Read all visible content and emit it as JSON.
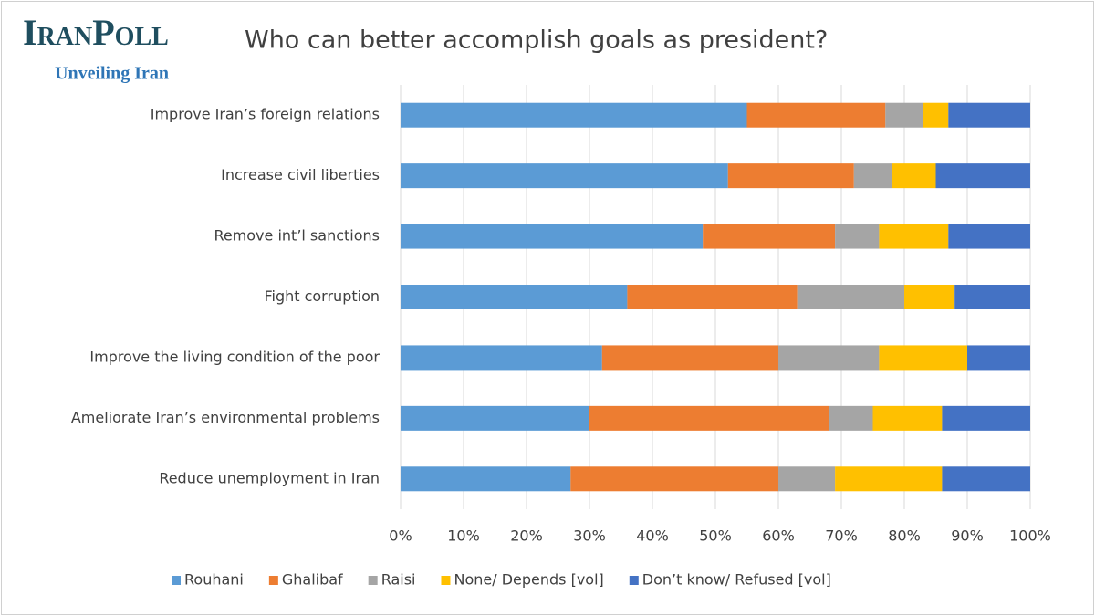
{
  "chart_data": {
    "type": "stacked-barh",
    "logo": "IranPoll",
    "tagline": "Unveiling Iran",
    "title": "Who can better accomplish goals as president?",
    "categories": [
      "Improve Iran’s foreign relations",
      "Increase civil liberties",
      "Remove int’l sanctions",
      "Fight corruption",
      "Improve the living condition of the poor",
      "Ameliorate Iran’s environmental problems",
      "Reduce unemployment in Iran"
    ],
    "series": [
      {
        "name": "Rouhani",
        "color": "#5b9bd5",
        "values": [
          55,
          52,
          48,
          36,
          32,
          30,
          27
        ]
      },
      {
        "name": "Ghalibaf",
        "color": "#ed7d31",
        "values": [
          22,
          20,
          21,
          27,
          28,
          38,
          33
        ]
      },
      {
        "name": "Raisi",
        "color": "#a5a5a5",
        "values": [
          6,
          6,
          7,
          17,
          16,
          7,
          9
        ]
      },
      {
        "name": "None/ Depends [vol]",
        "color": "#ffc000",
        "values": [
          4,
          7,
          11,
          8,
          14,
          11,
          17
        ]
      },
      {
        "name": "Don’t know/ Refused [vol]",
        "color": "#4472c4",
        "values": [
          13,
          15,
          13,
          12,
          10,
          14,
          14
        ]
      }
    ],
    "xlim": [
      0,
      100
    ],
    "xticks": [
      {
        "value": 0,
        "label": "0%"
      },
      {
        "value": 10,
        "label": "10%"
      },
      {
        "value": 20,
        "label": "20%"
      },
      {
        "value": 30,
        "label": "30%"
      },
      {
        "value": 40,
        "label": "40%"
      },
      {
        "value": 50,
        "label": "50%"
      },
      {
        "value": 60,
        "label": "60%"
      },
      {
        "value": 70,
        "label": "70%"
      },
      {
        "value": 80,
        "label": "80%"
      },
      {
        "value": 90,
        "label": "90%"
      },
      {
        "value": 100,
        "label": "100%"
      }
    ],
    "grid": true,
    "legend": "bottom"
  }
}
